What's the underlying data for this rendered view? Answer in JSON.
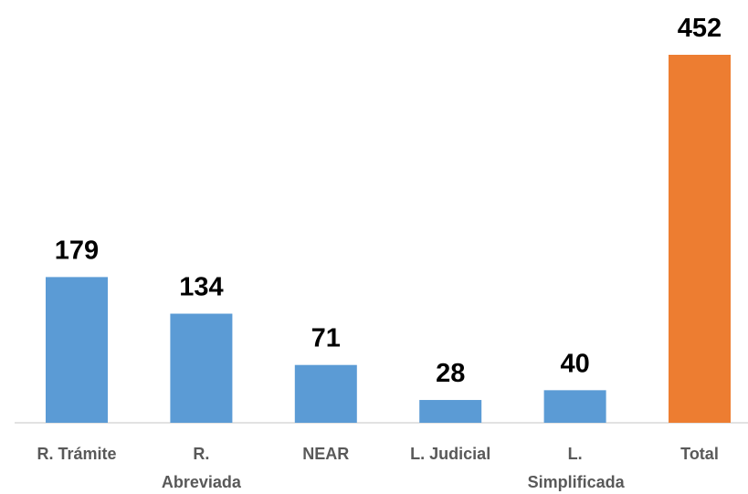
{
  "chart_data": {
    "type": "bar",
    "categories": [
      "R. Trámite",
      "R. Abreviada",
      "NEAR",
      "L. Judicial",
      "L. Simplificada",
      "Total"
    ],
    "values": [
      179,
      134,
      71,
      28,
      40,
      452
    ],
    "colors": [
      "#5b9bd5",
      "#5b9bd5",
      "#5b9bd5",
      "#5b9bd5",
      "#5b9bd5",
      "#ed7d31"
    ]
  }
}
